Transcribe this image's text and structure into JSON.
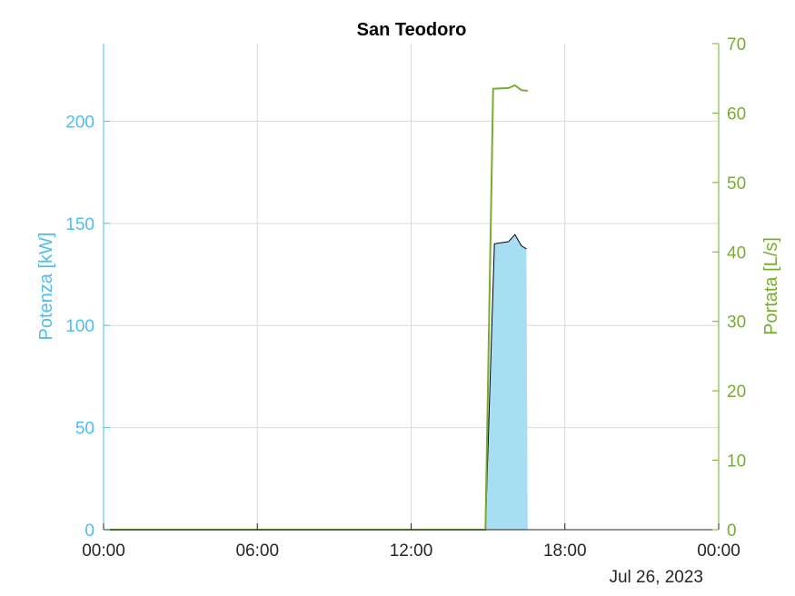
{
  "chart_data": {
    "type": "line",
    "title": "San Teodoro",
    "date_label": "Jul 26, 2023",
    "x": {
      "range_hours": [
        0,
        24
      ],
      "ticks": [
        0,
        6,
        12,
        18,
        24
      ],
      "tick_labels": [
        "00:00",
        "06:00",
        "12:00",
        "18:00",
        "00:00"
      ],
      "grid": true
    },
    "y_left": {
      "label": "Potenza [kW]",
      "range": [
        0,
        238
      ],
      "ticks": [
        0,
        50,
        100,
        150,
        200
      ],
      "tick_labels": [
        "0",
        "50",
        "100",
        "150",
        "200"
      ],
      "color": "#4dbeee",
      "grid": true
    },
    "y_right": {
      "label": "Portata [L/s]",
      "range": [
        0,
        70
      ],
      "ticks": [
        0,
        10,
        20,
        30,
        40,
        50,
        60,
        70
      ],
      "tick_labels": [
        "0",
        "10",
        "20",
        "30",
        "40",
        "50",
        "60",
        "70"
      ],
      "color": "#77ac30"
    },
    "series": [
      {
        "axis": "left",
        "style": "area",
        "fill": "#a8def3",
        "stroke": "#000000",
        "points": [
          [
            0,
            0
          ],
          [
            14.9,
            0
          ],
          [
            15.25,
            140
          ],
          [
            15.8,
            141
          ],
          [
            16.05,
            144.5
          ],
          [
            16.3,
            139
          ],
          [
            16.5,
            137.5
          ],
          [
            16.55,
            0
          ]
        ]
      },
      {
        "axis": "right",
        "style": "line",
        "color": "#77ac30",
        "points": [
          [
            0,
            0
          ],
          [
            14.9,
            0
          ],
          [
            15.2,
            63.5
          ],
          [
            15.8,
            63.6
          ],
          [
            16.05,
            64.0
          ],
          [
            16.3,
            63.3
          ],
          [
            16.55,
            63.2
          ]
        ]
      }
    ]
  }
}
